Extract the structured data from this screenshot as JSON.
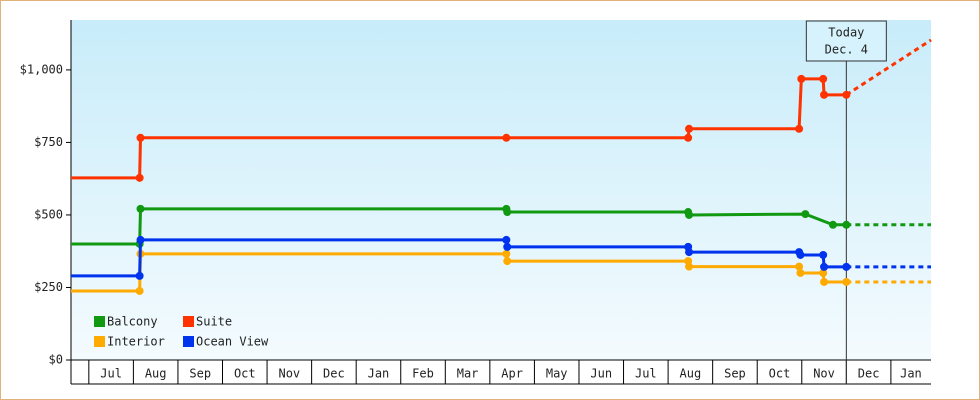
{
  "chart_data": {
    "type": "line",
    "categories": [
      "Jul",
      "Aug",
      "Sep",
      "Oct",
      "Nov",
      "Dec",
      "Jan",
      "Feb",
      "Mar",
      "Apr",
      "May",
      "Jun",
      "Jul",
      "Aug",
      "Sep",
      "Oct",
      "Nov",
      "Dec",
      "Jan"
    ],
    "xlim": [
      -0.4,
      18.9
    ],
    "ylim": [
      0,
      1172
    ],
    "yticks": [
      {
        "value": 0,
        "label": "$0"
      },
      {
        "value": 250,
        "label": "$250"
      },
      {
        "value": 500,
        "label": "$500"
      },
      {
        "value": 750,
        "label": "$750"
      },
      {
        "value": 1000,
        "label": "$1,000"
      }
    ],
    "annotation": {
      "x": 17.0,
      "lines": [
        "Today",
        "Dec. 4"
      ]
    },
    "series": [
      {
        "name": "Balcony",
        "color": "#119911",
        "x": [
          -0.4,
          1.14,
          1.16,
          9.37,
          9.39,
          13.45,
          13.47,
          16.08,
          16.7,
          17.0
        ],
        "values": [
          400,
          400,
          521,
          521,
          510,
          510,
          500,
          503,
          466,
          466
        ],
        "forecast_x": [
          17.0,
          18.9
        ],
        "forecast_values": [
          466,
          466
        ]
      },
      {
        "name": "Suite",
        "color": "#ff3300",
        "x": [
          -0.4,
          1.14,
          1.16,
          9.37,
          13.45,
          13.47,
          15.94,
          15.99,
          16.48,
          16.5,
          17.0
        ],
        "values": [
          628,
          628,
          766,
          766,
          766,
          797,
          797,
          969,
          969,
          914,
          914
        ],
        "forecast_x": [
          17.0,
          18.9
        ],
        "forecast_values": [
          914,
          1103
        ]
      },
      {
        "name": "Interior",
        "color": "#ffaa00",
        "x": [
          -0.4,
          1.14,
          1.16,
          9.37,
          9.39,
          13.45,
          13.47,
          15.94,
          15.97,
          16.48,
          16.5,
          17.0
        ],
        "values": [
          238,
          238,
          366,
          366,
          341,
          341,
          322,
          322,
          300,
          300,
          269,
          269
        ],
        "forecast_x": [
          17.0,
          18.9
        ],
        "forecast_values": [
          269,
          269
        ]
      },
      {
        "name": "Ocean View",
        "color": "#0033ee",
        "x": [
          -0.4,
          1.14,
          1.16,
          9.37,
          9.39,
          13.45,
          13.47,
          15.94,
          15.97,
          16.48,
          16.5,
          17.0
        ],
        "values": [
          290,
          290,
          414,
          414,
          390,
          390,
          372,
          372,
          362,
          362,
          321,
          321
        ],
        "forecast_x": [
          17.0,
          18.9
        ],
        "forecast_values": [
          321,
          321
        ]
      }
    ]
  }
}
